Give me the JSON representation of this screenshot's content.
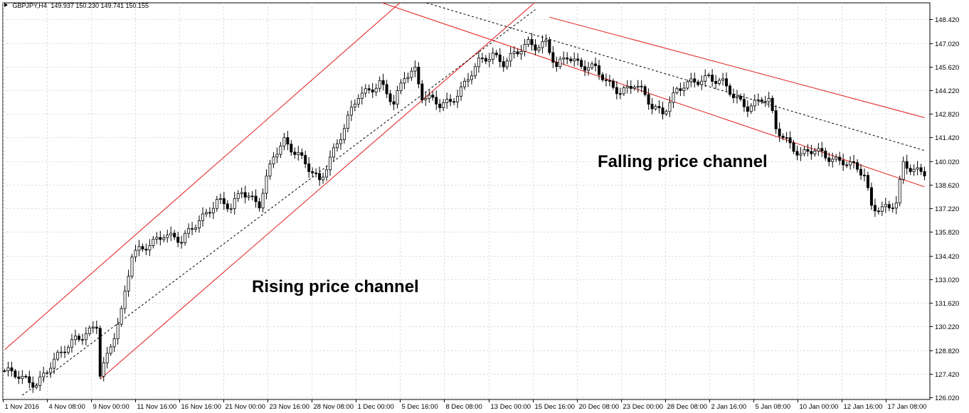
{
  "header": {
    "symbol": "GBPJPY,H4",
    "ohlc": "149.937 150.230 149.741 150.155"
  },
  "annotations": {
    "rising": "Rising price channel",
    "falling": "Falling price channel"
  },
  "colors": {
    "channel": "#e31b1b",
    "candle": "#000000",
    "grid": "#d7d7d7",
    "background": "#ffffff"
  },
  "chart_data": {
    "type": "candlestick",
    "title": "GBPJPY,H4",
    "ylim": [
      125.9,
      149.4
    ],
    "y_ticks": [
      "148.420",
      "147.020",
      "145.620",
      "144.220",
      "142.820",
      "141.420",
      "140.020",
      "138.620",
      "137.220",
      "135.820",
      "134.420",
      "133.020",
      "131.620",
      "130.220",
      "128.820",
      "127.420",
      "126.020"
    ],
    "x_ticks": [
      "1 Nov 2016",
      "4 Nov 08:00",
      "9 Nov 00:00",
      "11 Nov 16:00",
      "16 Nov 16:00",
      "21 Nov 00:00",
      "23 Nov 16:00",
      "28 Nov 08:00",
      "1 Dec 00:00",
      "5 Dec 16:00",
      "8 Dec 08:00",
      "13 Dec 00:00",
      "15 Dec 16:00",
      "20 Dec 08:00",
      "23 Dec 00:00",
      "28 Dec 08:00",
      "2 Jan 16:00",
      "5 Jan 08:00",
      "10 Jan 00:00",
      "12 Jan 16:00",
      "17 Jan 08:00"
    ],
    "grid": true,
    "price_path": [
      [
        0,
        127.6
      ],
      [
        5,
        127.1
      ],
      [
        9,
        126.9
      ],
      [
        16,
        128.6
      ],
      [
        20,
        129.6
      ],
      [
        24,
        129.9
      ],
      [
        26,
        130.2
      ],
      [
        27,
        127.3
      ],
      [
        29,
        128.4
      ],
      [
        33,
        131.2
      ],
      [
        36,
        134.5
      ],
      [
        39,
        134.7
      ],
      [
        45,
        135.8
      ],
      [
        50,
        135.2
      ],
      [
        55,
        136.6
      ],
      [
        60,
        137.6
      ],
      [
        64,
        137.2
      ],
      [
        67,
        138.4
      ],
      [
        72,
        137.4
      ],
      [
        76,
        140.3
      ],
      [
        79,
        141.3
      ],
      [
        83,
        140.4
      ],
      [
        86,
        139.5
      ],
      [
        89,
        138.8
      ],
      [
        92,
        140.3
      ],
      [
        95,
        141.5
      ],
      [
        100,
        143.9
      ],
      [
        106,
        144.7
      ],
      [
        110,
        143.3
      ],
      [
        113,
        145.1
      ],
      [
        116,
        145.5
      ],
      [
        118,
        143.9
      ],
      [
        123,
        143.3
      ],
      [
        126,
        143.6
      ],
      [
        130,
        144.6
      ],
      [
        134,
        145.8
      ],
      [
        138,
        146.4
      ],
      [
        141,
        145.9
      ],
      [
        145,
        146.4
      ],
      [
        148,
        147.0
      ],
      [
        150,
        146.9
      ],
      [
        153,
        147.1
      ],
      [
        156,
        145.5
      ],
      [
        159,
        146.2
      ],
      [
        163,
        145.8
      ],
      [
        167,
        145.5
      ],
      [
        170,
        144.6
      ],
      [
        174,
        144.2
      ],
      [
        178,
        144.6
      ],
      [
        180,
        144.1
      ],
      [
        183,
        143.2
      ],
      [
        186,
        143.0
      ],
      [
        190,
        144.2
      ],
      [
        194,
        144.6
      ],
      [
        199,
        145.1
      ],
      [
        203,
        144.6
      ],
      [
        206,
        143.8
      ],
      [
        210,
        143.3
      ],
      [
        214,
        143.7
      ],
      [
        216,
        143.5
      ],
      [
        218,
        141.9
      ],
      [
        222,
        141.1
      ],
      [
        225,
        140.4
      ],
      [
        229,
        140.6
      ],
      [
        233,
        140.3
      ],
      [
        237,
        140.0
      ],
      [
        241,
        139.5
      ],
      [
        243,
        139.2
      ],
      [
        245,
        137.4
      ],
      [
        250,
        137.2
      ],
      [
        252,
        137.5
      ],
      [
        254,
        139.8
      ],
      [
        257,
        139.6
      ],
      [
        260,
        139.4
      ]
    ],
    "channels": [
      {
        "name": "Rising price channel",
        "upper": [
          [
            0,
            128.85
          ],
          [
            131,
            152.95
          ]
        ],
        "lower": [
          [
            27,
            127.1
          ],
          [
            158,
            150.9
          ]
        ],
        "mid": [
          [
            5,
            126.15
          ],
          [
            150,
            149.0
          ]
        ]
      },
      {
        "name": "Falling price channel",
        "upper": [
          [
            154,
            148.55
          ],
          [
            260,
            142.6
          ]
        ],
        "lower": [
          [
            61,
            152.65
          ],
          [
            260,
            138.5
          ]
        ],
        "mid": [
          [
            95,
            150.9
          ],
          [
            260,
            140.65
          ]
        ]
      }
    ]
  }
}
